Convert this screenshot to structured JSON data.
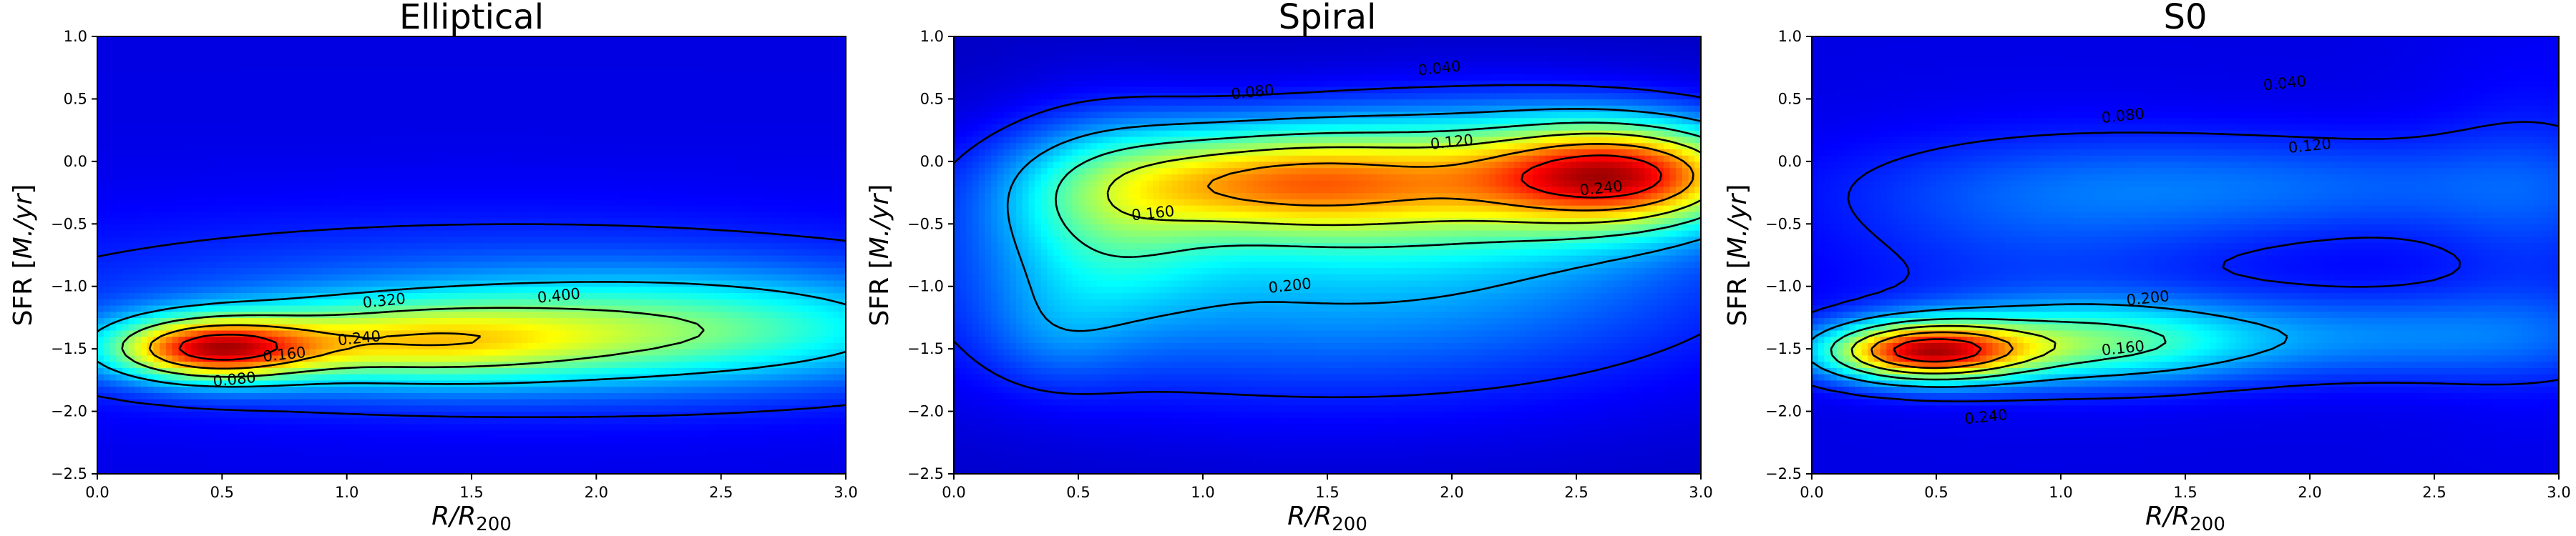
{
  "chart_data": [
    {
      "type": "heatmap",
      "subtype": "density with contour lines",
      "title": "Elliptical",
      "xlabel": "R/R200",
      "ylabel": "SFR [M./yr]",
      "xlim": [
        0.0,
        3.0
      ],
      "ylim": [
        -2.5,
        1.0
      ],
      "xticks": [
        "0.0",
        "0.5",
        "1.0",
        "1.5",
        "2.0",
        "2.5",
        "3.0"
      ],
      "yticks": [
        "1.0",
        "0.5",
        "0.0",
        "-0.5",
        "-1.0",
        "-1.5",
        "-2.0",
        "-2.5"
      ],
      "colormap": "jet",
      "contour_levels": [
        "0.080",
        "0.160",
        "0.240",
        "0.320",
        "0.400"
      ],
      "peak": {
        "x": 0.42,
        "y": -1.5
      }
    },
    {
      "type": "heatmap",
      "subtype": "density with contour lines",
      "title": "Spiral",
      "xlabel": "R/R200",
      "ylabel": "SFR [M./yr]",
      "xlim": [
        0.0,
        3.0
      ],
      "ylim": [
        -2.5,
        1.0
      ],
      "xticks": [
        "0.0",
        "0.5",
        "1.0",
        "1.5",
        "2.0",
        "2.5",
        "3.0"
      ],
      "yticks": [
        "1.0",
        "0.5",
        "0.0",
        "-0.5",
        "-1.0",
        "-1.5",
        "-2.0",
        "-2.5"
      ],
      "colormap": "jet",
      "contour_levels": [
        "0.040",
        "0.080",
        "0.120",
        "0.160",
        "0.200",
        "0.240"
      ],
      "peak": {
        "x": 2.7,
        "y": -0.1
      }
    },
    {
      "type": "heatmap",
      "subtype": "density with contour lines",
      "title": "S0",
      "xlabel": "R/R200",
      "ylabel": "SFR [M./yr]",
      "xlim": [
        0.0,
        3.0
      ],
      "ylim": [
        -2.5,
        1.0
      ],
      "xticks": [
        "0.0",
        "0.5",
        "1.0",
        "1.5",
        "2.0",
        "2.5",
        "3.0"
      ],
      "yticks": [
        "1.0",
        "0.5",
        "0.0",
        "-0.5",
        "-1.0",
        "-1.5",
        "-2.0",
        "-2.5"
      ],
      "colormap": "jet",
      "contour_levels": [
        "0.040",
        "0.080",
        "0.120",
        "0.160",
        "0.200",
        "0.240"
      ],
      "peak": {
        "x": 0.45,
        "y": -1.52
      }
    }
  ]
}
